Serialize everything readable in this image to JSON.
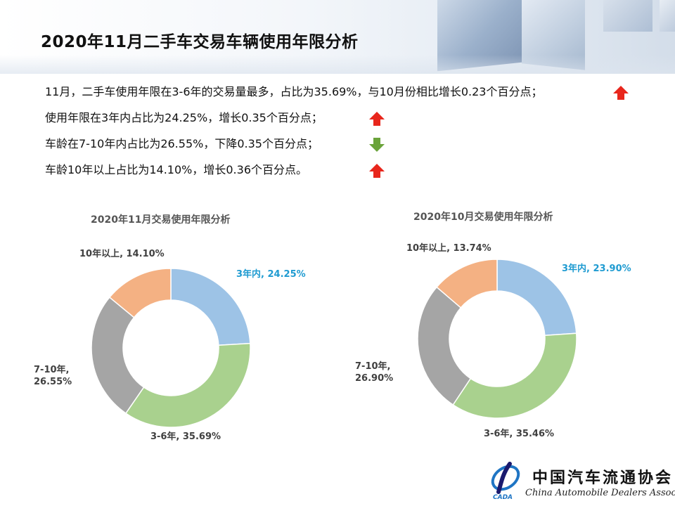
{
  "header": {
    "title": "2020年11月二手车交易车辆使用年限分析"
  },
  "bullets": [
    {
      "text": "11月，二手车使用年限在3-6年的交易量最多，占比为35.69%，与10月份相比增长0.23个百分点；",
      "trend": "up",
      "trend_icon": "arrow-up-icon"
    },
    {
      "text": "使用年限在3年内占比为24.25%，增长0.35个百分点；",
      "trend": "up",
      "trend_icon": "arrow-up-icon"
    },
    {
      "text": "车龄在7-10年内占比为26.55%，下降0.35个百分点；",
      "trend": "down",
      "trend_icon": "arrow-down-icon"
    },
    {
      "text": "车龄10年以上占比为14.10%，增长0.36个百分点。",
      "trend": "up",
      "trend_icon": "arrow-up-icon"
    }
  ],
  "colors": {
    "up_arrow": "#e8261c",
    "down_arrow": "#6aa33a",
    "label_highlight": "#1f9bd1",
    "label_default": "#404040"
  },
  "chart_data": [
    {
      "type": "donut",
      "title": "2020年11月交易使用年限分析",
      "slices": [
        {
          "category": "3年内",
          "value": 24.25,
          "label": "3年内, 24.25%",
          "color": "#9dc3e6"
        },
        {
          "category": "3-6年",
          "value": 35.69,
          "label": "3-6年, 35.69%",
          "color": "#a9d18e"
        },
        {
          "category": "7-10年",
          "value": 26.55,
          "label": "7-10年,\n26.55%",
          "color": "#a5a5a5"
        },
        {
          "category": "10年以上",
          "value": 14.1,
          "label": "10年以上, 14.10%",
          "color": "#f4b183"
        }
      ]
    },
    {
      "type": "donut",
      "title": "2020年10月交易使用年限分析",
      "slices": [
        {
          "category": "3年内",
          "value": 23.9,
          "label": "3年内, 23.90%",
          "color": "#9dc3e6"
        },
        {
          "category": "3-6年",
          "value": 35.46,
          "label": "3-6年, 35.46%",
          "color": "#a9d18e"
        },
        {
          "category": "7-10年",
          "value": 26.9,
          "label": "7-10年,\n26.90%",
          "color": "#a5a5a5"
        },
        {
          "category": "10年以上",
          "value": 13.74,
          "label": "10年以上, 13.74%",
          "color": "#f4b183"
        }
      ]
    }
  ],
  "footer": {
    "logo_cn": "中国汽车流通协会",
    "logo_en": "China Automobile Dealers Association",
    "logo_mark": "CADA"
  }
}
